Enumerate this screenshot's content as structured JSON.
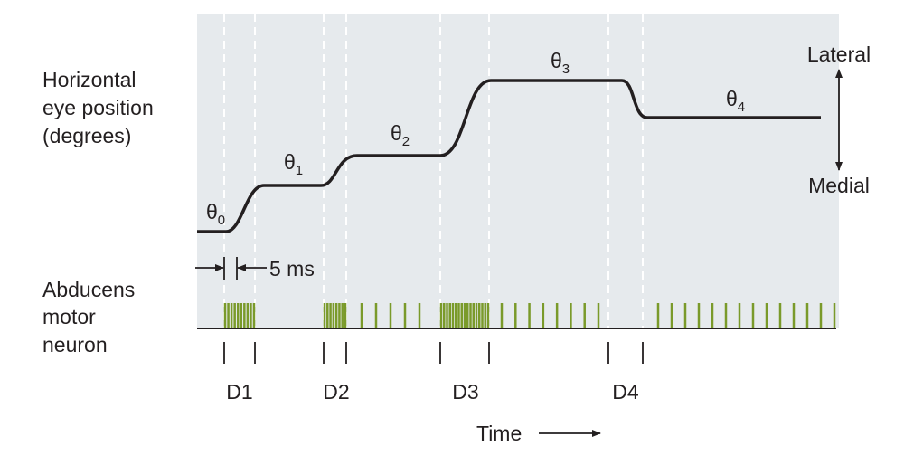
{
  "labels": {
    "eye_position": [
      "Horizontal",
      "eye position",
      "(degrees)"
    ],
    "neuron": [
      "Abducens",
      "motor",
      "neuron"
    ],
    "lateral": "Lateral",
    "medial": "Medial",
    "interval": "5 ms",
    "time": "Time"
  },
  "positions": [
    {
      "symbol": "θ",
      "sub": "0"
    },
    {
      "symbol": "θ",
      "sub": "1"
    },
    {
      "symbol": "θ",
      "sub": "2"
    },
    {
      "symbol": "θ",
      "sub": "3"
    },
    {
      "symbol": "θ",
      "sub": "4"
    }
  ],
  "durations": [
    "D1",
    "D2",
    "D3",
    "D4"
  ]
}
